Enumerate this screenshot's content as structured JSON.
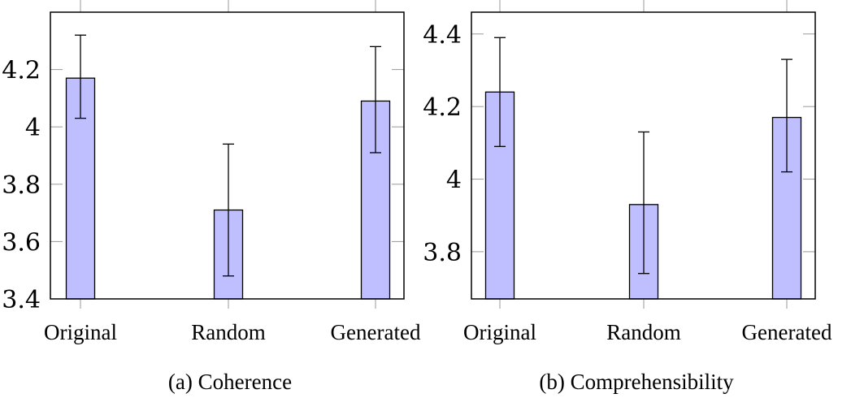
{
  "chart_data": [
    {
      "type": "bar",
      "title": "(a) Coherence",
      "xlabel": "",
      "ylabel": "",
      "categories": [
        "Original",
        "Random",
        "Generated"
      ],
      "values": [
        4.17,
        3.71,
        4.09
      ],
      "error_bars": [
        {
          "low": 4.03,
          "high": 4.32
        },
        {
          "low": 3.48,
          "high": 3.94
        },
        {
          "low": 3.91,
          "high": 4.28
        }
      ],
      "yticks": [
        "3.4",
        "3.6",
        "3.8",
        "4",
        "4.2"
      ],
      "ytick_values": [
        3.4,
        3.6,
        3.8,
        4.0,
        4.2
      ],
      "ylim": [
        3.4,
        4.4
      ],
      "grid": false,
      "bar_color": "#bfbfff",
      "legend": null
    },
    {
      "type": "bar",
      "title": "(b) Comprehensibility",
      "xlabel": "",
      "ylabel": "",
      "categories": [
        "Original",
        "Random",
        "Generated"
      ],
      "values": [
        4.24,
        3.93,
        4.17
      ],
      "error_bars": [
        {
          "low": 4.09,
          "high": 4.39
        },
        {
          "low": 3.74,
          "high": 4.13
        },
        {
          "low": 4.02,
          "high": 4.33
        }
      ],
      "yticks": [
        "3.8",
        "4",
        "4.2",
        "4.4"
      ],
      "ytick_values": [
        3.8,
        4.0,
        4.2,
        4.4
      ],
      "ylim": [
        3.67,
        4.46
      ],
      "grid": false,
      "bar_color": "#bfbfff",
      "legend": null
    }
  ],
  "captions": {
    "a": "(a) Coherence",
    "b": "(b) Comprehensibility"
  }
}
